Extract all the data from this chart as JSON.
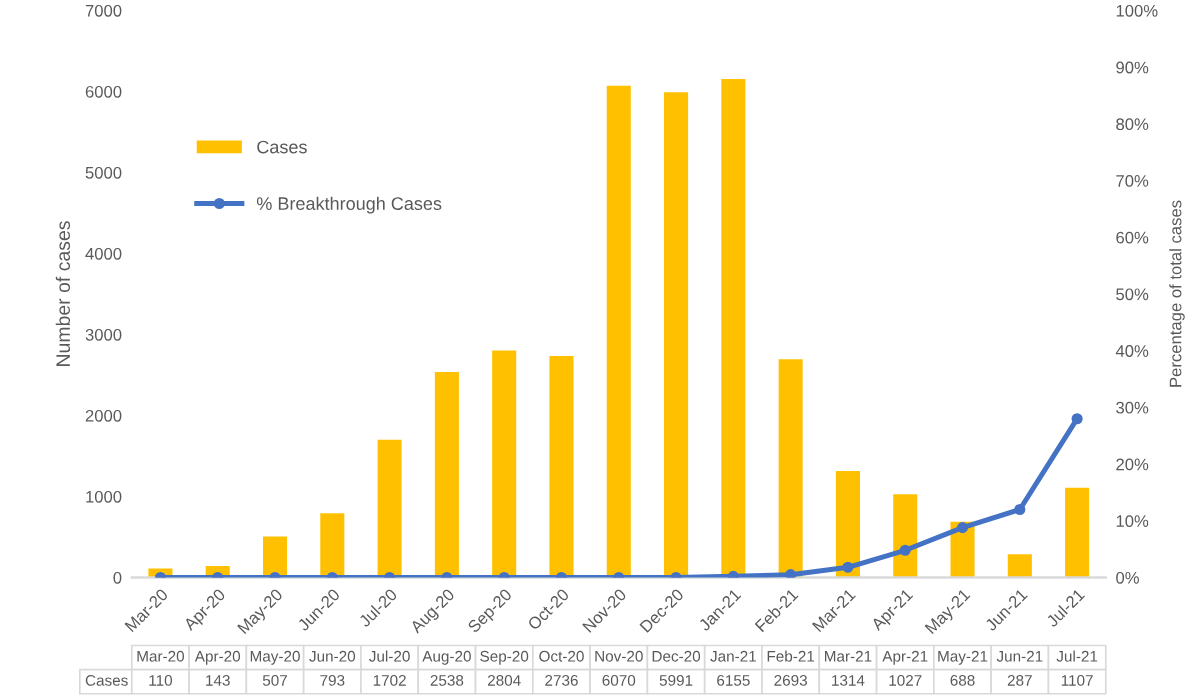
{
  "chart_data": {
    "type": "bar",
    "categories": [
      "Mar-20",
      "Apr-20",
      "May-20",
      "Jun-20",
      "Jul-20",
      "Aug-20",
      "Sep-20",
      "Oct-20",
      "Nov-20",
      "Dec-20",
      "Jan-21",
      "Feb-21",
      "Mar-21",
      "Apr-21",
      "May-21",
      "Jun-21",
      "Jul-21"
    ],
    "series": [
      {
        "name": "Cases",
        "color": "#ffc000",
        "values": [
          110,
          143,
          507,
          793,
          1702,
          2538,
          2804,
          2736,
          6070,
          5991,
          6155,
          2693,
          1314,
          1027,
          688,
          287,
          1107
        ],
        "value_labels": [
          "110",
          "143",
          "507",
          "793",
          "1702",
          "2538",
          "2804",
          "2736",
          "6070",
          "5991",
          "6155",
          "2693",
          "1314",
          "1027",
          "688",
          "287",
          "1107"
        ]
      },
      {
        "name": "% Breakthrough Cases",
        "type": "line",
        "axis": "y2",
        "color": "#4472c4",
        "values": [
          0,
          0,
          0,
          0,
          0,
          0,
          0,
          0,
          0,
          0,
          0.2,
          0.5,
          1.8,
          4.8,
          8.8,
          12,
          28
        ]
      }
    ],
    "ylabel": "Number of cases",
    "y2label": "Percentage of total cases",
    "ylim": [
      0,
      7000
    ],
    "yticks": [
      0,
      1000,
      2000,
      3000,
      4000,
      5000,
      6000,
      7000
    ],
    "y2lim": [
      0,
      100
    ],
    "y2ticks": [
      {
        "value": 0,
        "label": "0%"
      },
      {
        "value": 10,
        "label": "10%"
      },
      {
        "value": 20,
        "label": "20%"
      },
      {
        "value": 30,
        "label": "30%"
      },
      {
        "value": 40,
        "label": "40%"
      },
      {
        "value": 50,
        "label": "50%"
      },
      {
        "value": 60,
        "label": "60%"
      },
      {
        "value": 70,
        "label": "70%"
      },
      {
        "value": 80,
        "label": "80%"
      },
      {
        "value": 90,
        "label": "90%"
      },
      {
        "value": 100,
        "label": "100%"
      }
    ],
    "legend": "top left",
    "marker": "circle",
    "grid": false
  }
}
